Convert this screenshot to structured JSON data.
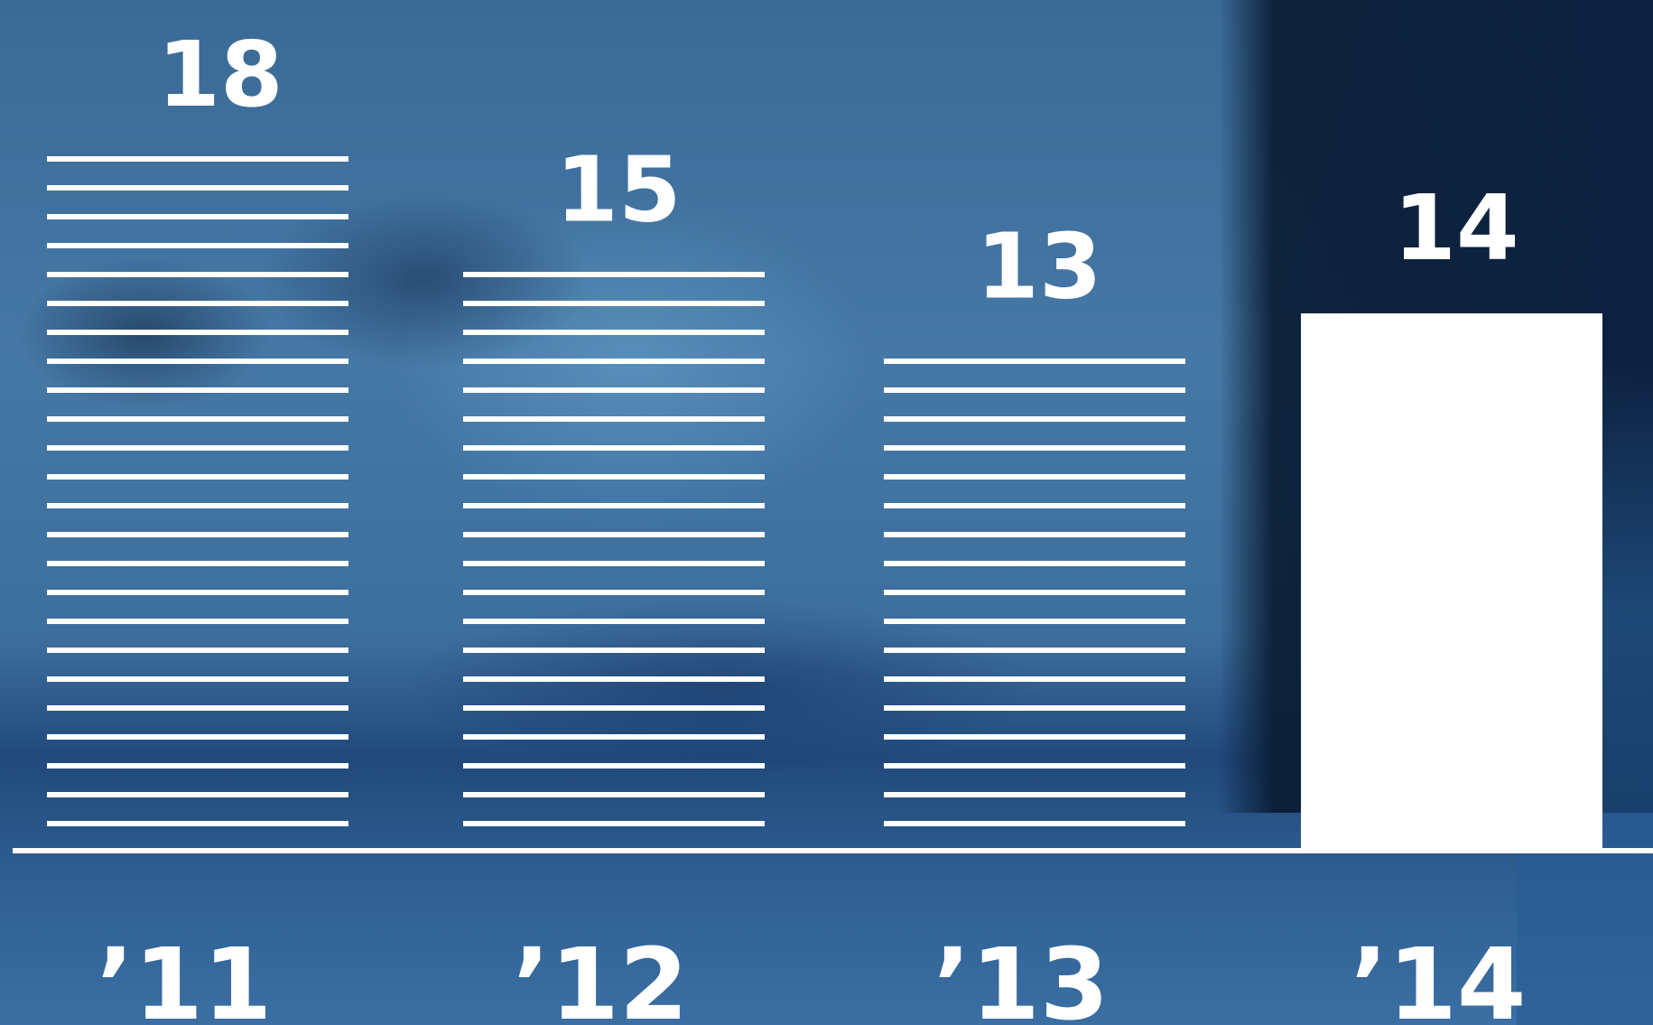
{
  "chart_data": {
    "type": "bar",
    "categories": [
      "’11",
      "’12",
      "’13",
      "’14"
    ],
    "values": [
      18,
      15,
      13,
      14
    ],
    "bar_styles": [
      "striped",
      "striped",
      "striped",
      "solid"
    ],
    "title": "",
    "xlabel": "",
    "ylabel": "",
    "grid": false,
    "legend": "none",
    "bar_color": "#ffffff"
  }
}
